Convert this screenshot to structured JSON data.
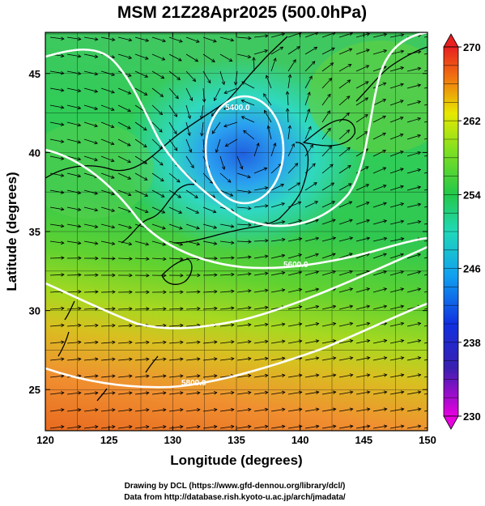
{
  "title": "MSM 21Z28Apr2025 (500.0hPa)",
  "x_axis": {
    "label": "Longitude (degrees)",
    "range": [
      120,
      150
    ],
    "ticks": [
      "120",
      "125",
      "130",
      "135",
      "140",
      "145",
      "150"
    ]
  },
  "y_axis": {
    "label": "Latitude  (degrees)",
    "range": [
      22.4,
      47.6
    ],
    "ticks": [
      "25",
      "30",
      "35",
      "40",
      "45"
    ]
  },
  "colorbar": {
    "range": [
      230,
      270
    ],
    "ticks": [
      "230",
      "238",
      "246",
      "254",
      "262",
      "270"
    ]
  },
  "contour_labels": [
    "5400.0",
    "5600.0",
    "5800.0"
  ],
  "credits": {
    "drawing": "Drawing by DCL (https://www.gfd-dennou.org/library/dcl/)",
    "data": "Data from http://database.rish.kyoto-u.ac.jp/arch/jmadata/"
  },
  "colors": {
    "cold_core": "#2a7fe0",
    "mid": "#2fcf2f",
    "warm": "#f07a20",
    "contour": "#ffffff",
    "coast": "#000000"
  }
}
